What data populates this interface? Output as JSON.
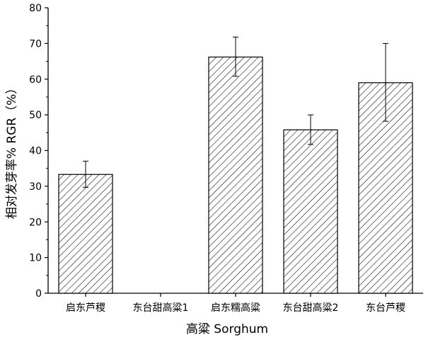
{
  "chart_data": {
    "type": "bar",
    "title": "",
    "xlabel": "高粱 Sorghum",
    "ylabel": "相对发芽率% RGR（%）",
    "categories": [
      "启东芦稷",
      "东台甜高粱1",
      "启东糯高粱",
      "东台甜高粱2",
      "东台芦稷"
    ],
    "values": [
      33.3,
      0,
      66.2,
      45.8,
      59.0
    ],
    "error_upper": [
      37.0,
      0,
      71.8,
      50.0,
      70.0
    ],
    "error_lower": [
      29.7,
      0,
      60.8,
      41.7,
      48.2
    ],
    "ylim": [
      0,
      80
    ],
    "yticks": [
      "0",
      "10",
      "20",
      "30",
      "40",
      "50",
      "60",
      "70",
      "80"
    ],
    "grid": false,
    "bar_fill": "hatched-diagonal",
    "colors": {
      "bar_stroke": "#000000",
      "hatch": "#000000",
      "axis": "#000000"
    }
  }
}
